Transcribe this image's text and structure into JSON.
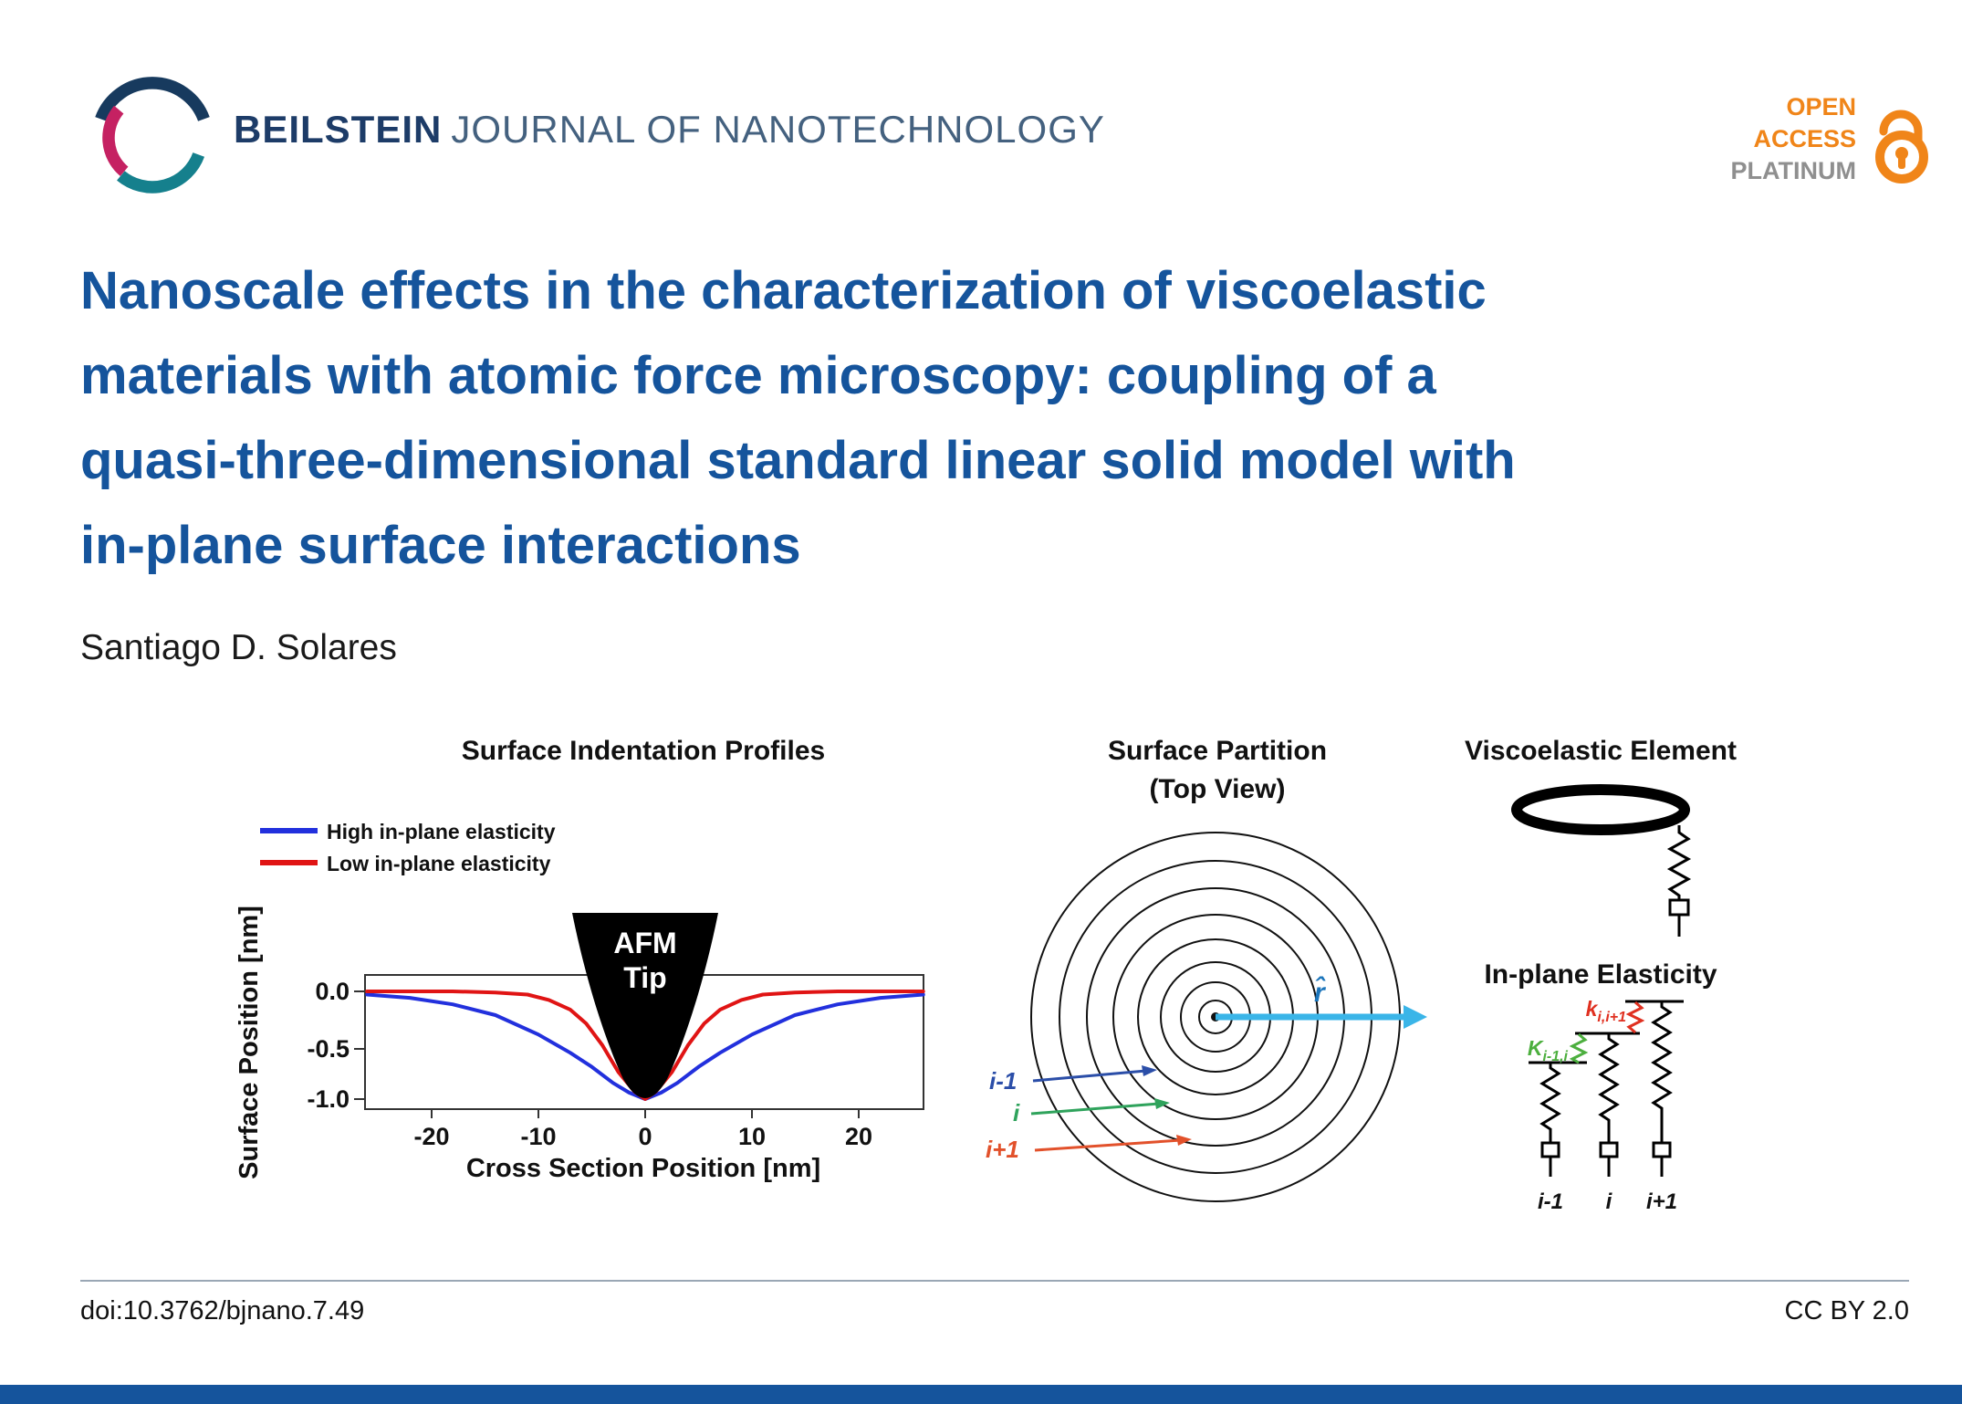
{
  "header": {
    "journal_bold": "BEILSTEIN",
    "journal_rest": "JOURNAL OF NANOTECHNOLOGY",
    "open_access": {
      "line1": "OPEN",
      "line2": "ACCESS",
      "line3": "PLATINUM"
    }
  },
  "article": {
    "title_lines": [
      "Nanoscale effects in the characterization of viscoelastic",
      "materials with atomic force microscopy: coupling of a",
      "quasi-three-dimensional standard linear solid model with",
      "in-plane surface interactions"
    ],
    "author": "Santiago D. Solares"
  },
  "figure": {
    "indentation": {
      "tip_line1": "AFM",
      "tip_line2": "Tip"
    },
    "partition": {
      "title_line1": "Surface Partition",
      "title_line2": "(Top View)",
      "r_arrow_color": "#3ab5e8",
      "r_label": "r̂",
      "r_label_color": "#1b75bb",
      "arrows": [
        {
          "label": "i-1",
          "color": "#2b4ea8"
        },
        {
          "label": "i",
          "color": "#2fa35c"
        },
        {
          "label": "i+1",
          "color": "#e2512b"
        }
      ]
    },
    "viscoelastic": {
      "title": "Viscoelastic Element"
    },
    "elasticity": {
      "title": "In-plane Elasticity",
      "spring_labels": [
        {
          "main": "K",
          "sub": "i-1,i",
          "color": "#4caf3e"
        },
        {
          "main": "k",
          "sub": "i,i+1",
          "color": "#e03020"
        }
      ],
      "node_labels": [
        "i-1",
        "i",
        "i+1"
      ]
    }
  },
  "footer": {
    "doi": "doi:10.3762/bjnano.7.49",
    "license": "CC BY 2.0"
  },
  "colors": {
    "title_blue": "#15549c",
    "bottom_bar": "#15549c"
  },
  "chart_data": {
    "type": "line",
    "title": "Surface Indentation Profiles",
    "xlabel": "Cross Section Position [nm]",
    "ylabel": "Surface Position [nm]",
    "xlim": [
      -26,
      26
    ],
    "ylim": [
      -1.05,
      0.12
    ],
    "xtick_labels": [
      "-20",
      "-10",
      "0",
      "10",
      "20"
    ],
    "ytick_labels": [
      "0.0",
      "-0.5",
      "-1.0"
    ],
    "legend_position": "upper left",
    "grid": false,
    "annotations": [
      "AFM Tip"
    ],
    "series": [
      {
        "name": "High in-plane elasticity",
        "color": "#2230dd",
        "x": [
          -26,
          -22,
          -18,
          -14,
          -10,
          -7,
          -5,
          -3,
          -1.5,
          0,
          1.5,
          3,
          5,
          7,
          10,
          14,
          18,
          22,
          26
        ],
        "y": [
          -0.03,
          -0.06,
          -0.12,
          -0.22,
          -0.4,
          -0.57,
          -0.7,
          -0.85,
          -0.94,
          -1.0,
          -0.94,
          -0.85,
          -0.7,
          -0.57,
          -0.4,
          -0.22,
          -0.12,
          -0.06,
          -0.03
        ]
      },
      {
        "name": "Low in-plane elasticity",
        "color": "#e01414",
        "x": [
          -26,
          -18,
          -14,
          -11,
          -9,
          -7,
          -5.5,
          -4,
          -2.5,
          -1,
          0,
          1,
          2.5,
          4,
          5.5,
          7,
          9,
          11,
          14,
          18,
          26
        ],
        "y": [
          0.0,
          0.0,
          -0.01,
          -0.03,
          -0.08,
          -0.17,
          -0.3,
          -0.5,
          -0.75,
          -0.93,
          -1.0,
          -0.93,
          -0.75,
          -0.5,
          -0.3,
          -0.17,
          -0.08,
          -0.03,
          -0.01,
          0.0,
          0.0
        ]
      }
    ]
  }
}
